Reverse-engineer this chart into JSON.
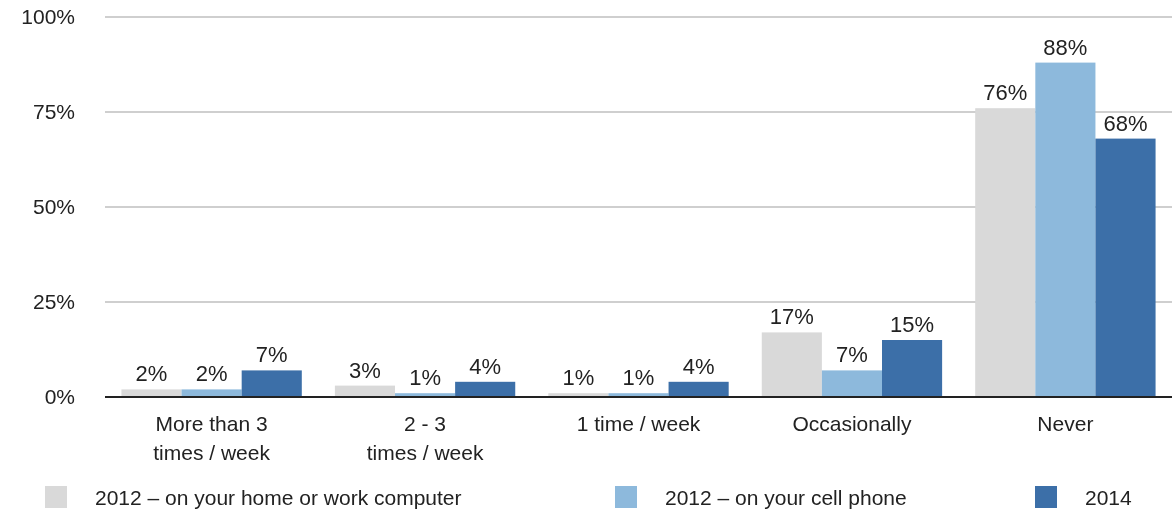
{
  "chart_data": {
    "type": "bar",
    "categories": [
      "More than 3\ntimes / week",
      "2 - 3\ntimes / week",
      "1 time / week",
      "Occasionally",
      "Never"
    ],
    "series": [
      {
        "name": "2012 – on your home or work computer",
        "color": "#d9d9d9",
        "values": [
          2,
          3,
          1,
          17,
          76
        ]
      },
      {
        "name": "2012 – on your cell phone",
        "color": "#8db9dc",
        "values": [
          2,
          1,
          1,
          7,
          88
        ]
      },
      {
        "name": "2014",
        "color": "#3c6fa8",
        "values": [
          7,
          4,
          4,
          15,
          68
        ]
      }
    ],
    "ylim": [
      0,
      100
    ],
    "yticks": [
      {
        "value": 0,
        "label": "0%"
      },
      {
        "value": 25,
        "label": "25%"
      },
      {
        "value": 50,
        "label": "50%"
      },
      {
        "value": 75,
        "label": "75%"
      },
      {
        "value": 100,
        "label": "100%"
      }
    ],
    "value_labels": [
      [
        "2%",
        "3%",
        "1%",
        "17%",
        "76%"
      ],
      [
        "2%",
        "1%",
        "1%",
        "7%",
        "88%"
      ],
      [
        "7%",
        "4%",
        "4%",
        "15%",
        "68%"
      ]
    ],
    "grid": "y",
    "legend": "bottom"
  }
}
